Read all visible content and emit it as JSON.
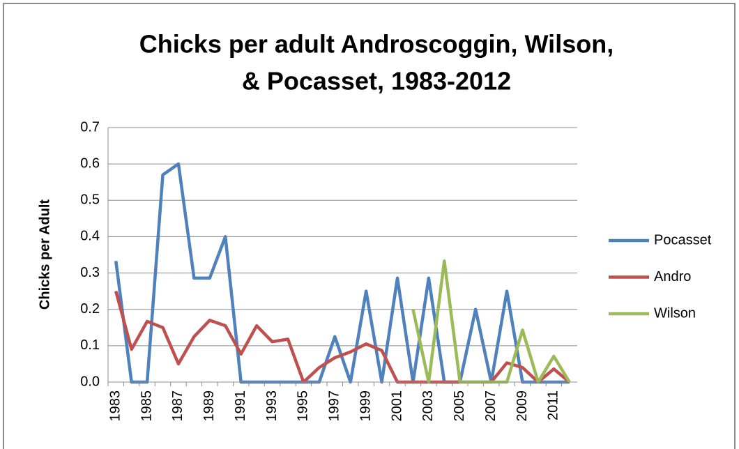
{
  "chart_data": {
    "type": "line",
    "title": "Chicks per adult  Androscoggin, Wilson,",
    "subtitle": "& Pocasset,  1983-2012",
    "y_label": "Chicks per Adult",
    "categories": [
      "1983",
      null,
      "1985",
      null,
      "1987",
      null,
      "1989",
      null,
      "1991",
      null,
      "1993",
      null,
      "1995",
      null,
      "1997",
      null,
      "1999",
      null,
      "2001",
      null,
      "2003",
      null,
      "2005",
      null,
      "2007",
      null,
      "2009",
      null,
      "2011",
      null
    ],
    "series": [
      {
        "name": "Pocasset",
        "color": "#4f81bd",
        "values": [
          0.333,
          0,
          0,
          0.57,
          0.6,
          0.286,
          0.286,
          0.4,
          0,
          0,
          0,
          0,
          0,
          0,
          0.125,
          0,
          0.25,
          0,
          0.286,
          0,
          0.286,
          0,
          0,
          0.2,
          0,
          0.25,
          0,
          0,
          0,
          0
        ]
      },
      {
        "name": "Andro",
        "color": "#c0504d",
        "values": [
          0.25,
          0.09,
          0.167,
          0.15,
          0.05,
          0.125,
          0.17,
          0.155,
          0.077,
          0.155,
          0.111,
          0.118,
          0,
          0.04,
          0.067,
          0.083,
          0.105,
          0.087,
          0,
          0,
          0,
          0,
          0,
          0,
          0,
          0.053,
          0.04,
          0,
          0.036,
          0
        ]
      },
      {
        "name": "Wilson",
        "color": "#9bbb59",
        "values": [
          null,
          null,
          null,
          null,
          null,
          null,
          null,
          null,
          null,
          null,
          null,
          null,
          null,
          null,
          null,
          null,
          null,
          null,
          null,
          0.2,
          0,
          0.333,
          0,
          0,
          0,
          0,
          0.143,
          0,
          0.071,
          0
        ]
      }
    ],
    "ylim": [
      0,
      0.7
    ],
    "yticks": [
      {
        "value": 0,
        "label": "0.0"
      },
      0.1,
      0.2,
      0.3,
      0.4,
      0.5,
      0.6,
      0.7
    ],
    "grid": true,
    "legend": "right"
  }
}
